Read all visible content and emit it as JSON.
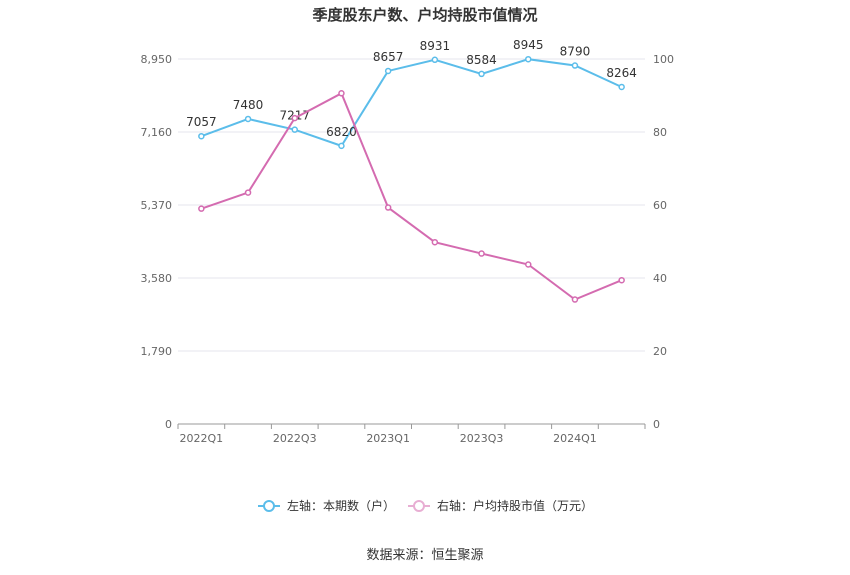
{
  "chart_data": {
    "type": "line",
    "title": "季度股东户数、户均持股市值情况",
    "source": "数据来源：恒生聚源",
    "x": [
      "2022Q1",
      "2022Q2",
      "2022Q3",
      "2022Q4",
      "2023Q1",
      "2023Q2",
      "2023Q3",
      "2023Q4",
      "2024Q1",
      "2024Q2"
    ],
    "x_tick_labels": [
      "2022Q1",
      "2022Q3",
      "2023Q1",
      "2023Q3",
      "2024Q1"
    ],
    "y_left": {
      "ticks": [
        "0",
        "1,790",
        "3,580",
        "5,370",
        "7,160",
        "8,950"
      ],
      "ylim": [
        0,
        8950
      ]
    },
    "y_right": {
      "ticks": [
        "0",
        "20",
        "40",
        "60",
        "80",
        "100"
      ],
      "ylim": [
        0,
        100
      ]
    },
    "grid": true,
    "legend_position": "bottom",
    "series": [
      {
        "name": "左轴：本期数（户）",
        "axis": "left",
        "color": "#5bbdea",
        "values": [
          7057,
          7480,
          7217,
          6820,
          8657,
          8931,
          8584,
          8945,
          8790,
          8264
        ],
        "labels": [
          "7057",
          "7480",
          "7217",
          "6820",
          "8657",
          "8931",
          "8584",
          "8945",
          "8790",
          "8264"
        ]
      },
      {
        "name": "右轴：户均持股市值（万元）",
        "axis": "right",
        "color": "#d46bb0",
        "values": [
          59.0,
          63.4,
          83.8,
          90.6,
          59.3,
          49.8,
          46.7,
          43.7,
          34.1,
          39.4
        ]
      }
    ]
  }
}
